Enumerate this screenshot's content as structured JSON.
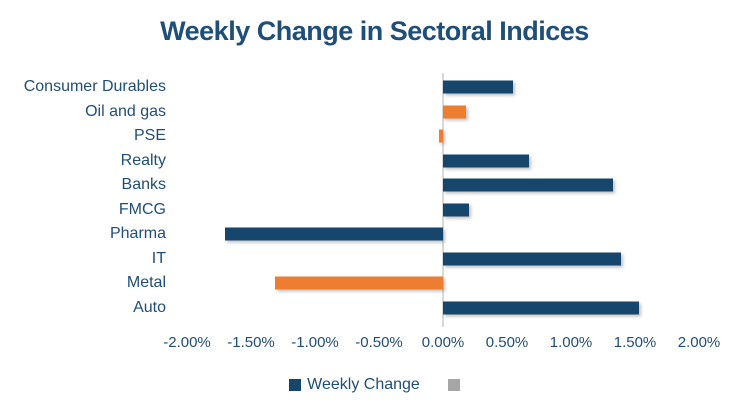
{
  "title": "Weekly Change in Sectoral Indices",
  "chart_data": {
    "type": "bar",
    "orientation": "horizontal",
    "title": "Weekly Change in Sectoral Indices",
    "xlabel": "",
    "ylabel": "",
    "categories": [
      "Consumer Durables",
      "Oil and gas",
      "PSE",
      "Realty",
      "Banks",
      "FMCG",
      "Pharma",
      "IT",
      "Metal",
      "Auto"
    ],
    "series": [
      {
        "name": "Weekly Change",
        "values": [
          0.55,
          0.18,
          -0.03,
          0.67,
          1.33,
          0.2,
          -1.7,
          1.39,
          -1.31,
          1.53
        ],
        "unit": "%"
      }
    ],
    "bar_colors": [
      "#16466B",
      "#ED7D31",
      "#ED7D31",
      "#16466B",
      "#16466B",
      "#16466B",
      "#16466B",
      "#16466B",
      "#ED7D31",
      "#16466B"
    ],
    "xlim": [
      -2.0,
      2.0
    ],
    "x_tick_labels": [
      "-2.00%",
      "-1.50%",
      "-1.00%",
      "-0.50%",
      "0.00%",
      "0.50%",
      "1.00%",
      "1.50%",
      "2.00%"
    ],
    "grid": false,
    "legend_position": "bottom",
    "legend": [
      {
        "label": "Weekly Change",
        "color": "#16466B"
      },
      {
        "label": "",
        "color": "#A6A6A6"
      }
    ]
  },
  "colors": {
    "title_text": "#1F4E79",
    "category_text": "#1F4E79",
    "tick_text": "#1F4E79",
    "axis_line": "#D9D9D9",
    "bar_blue": "#16466B",
    "bar_orange": "#ED7D31",
    "legend_gray": "#A6A6A6",
    "background": "#FFFFFF"
  }
}
